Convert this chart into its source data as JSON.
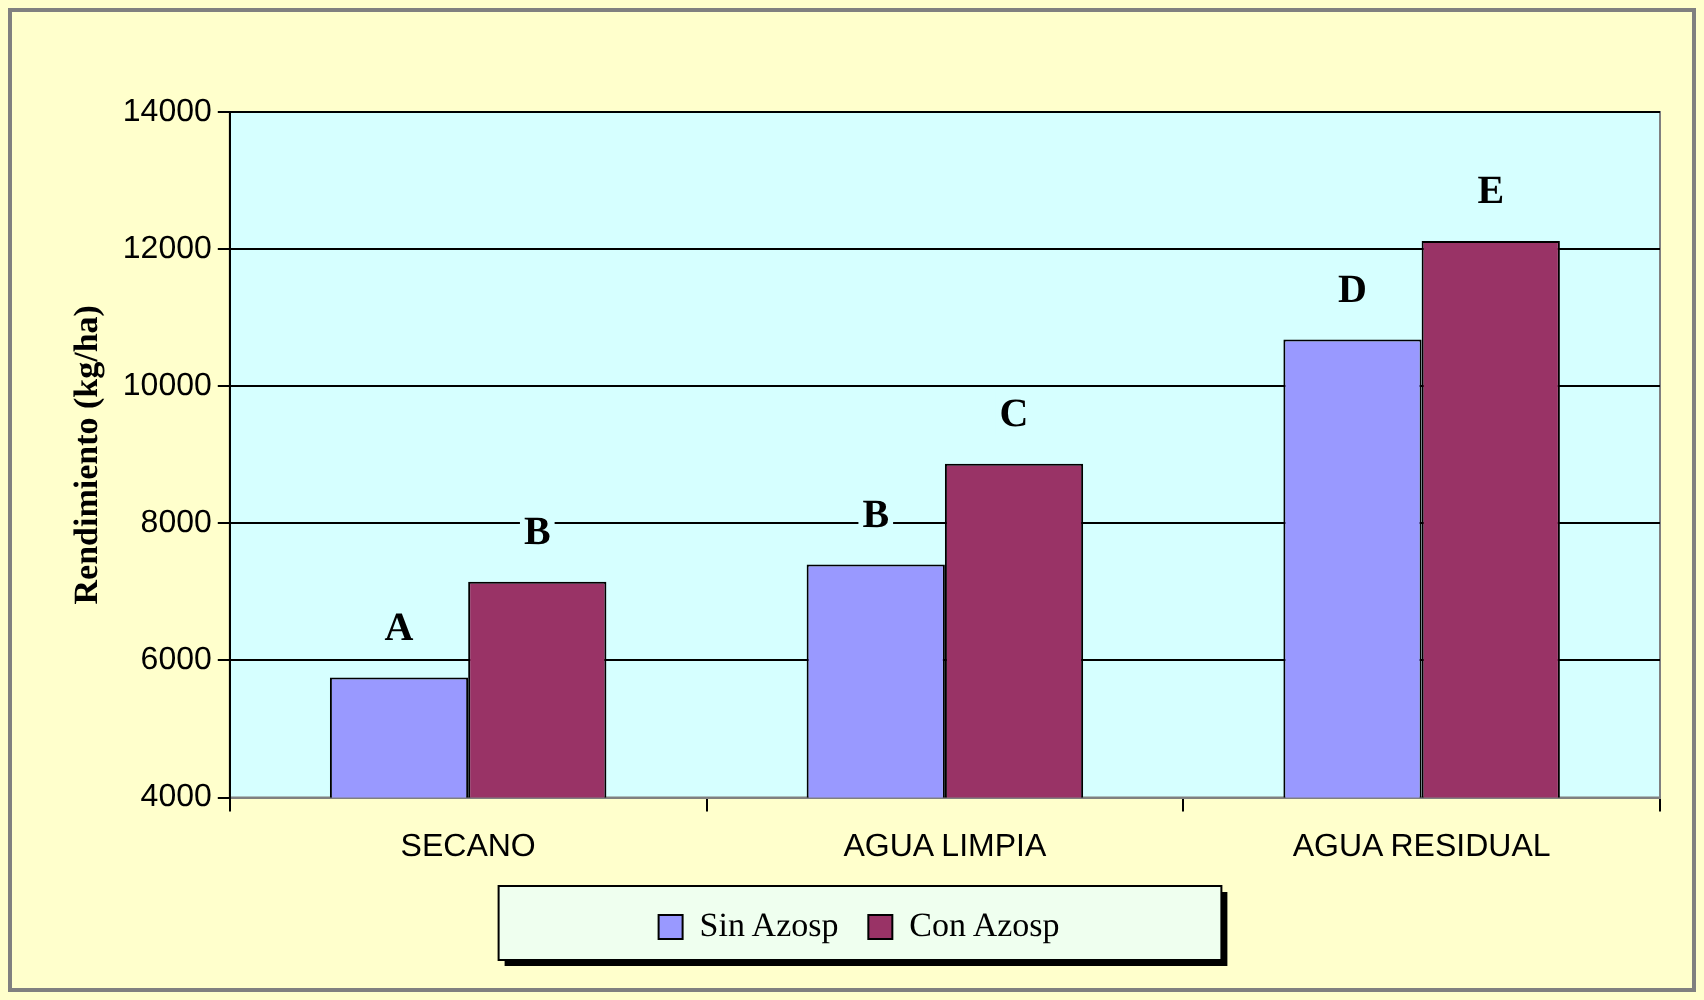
{
  "chart_data": {
    "type": "bar",
    "ylabel": "Rendimiento (kg/ha)",
    "categories": [
      "SECANO",
      "AGUA LIMPIA",
      "AGUA RESIDUAL"
    ],
    "series": [
      {
        "name": "Sin Azosp",
        "color": "#9999ff",
        "values": [
          5750,
          7400,
          10680
        ],
        "value_labels": [
          "A",
          "B",
          "D"
        ]
      },
      {
        "name": "Con Azosp",
        "color": "#993366",
        "values": [
          7150,
          8870,
          12120
        ],
        "value_labels": [
          "B",
          "C",
          "E"
        ]
      }
    ],
    "ylim": [
      4000,
      14000
    ],
    "yticks": [
      4000,
      6000,
      8000,
      10000,
      12000,
      14000
    ],
    "grid": "y",
    "legend": "bottom"
  }
}
